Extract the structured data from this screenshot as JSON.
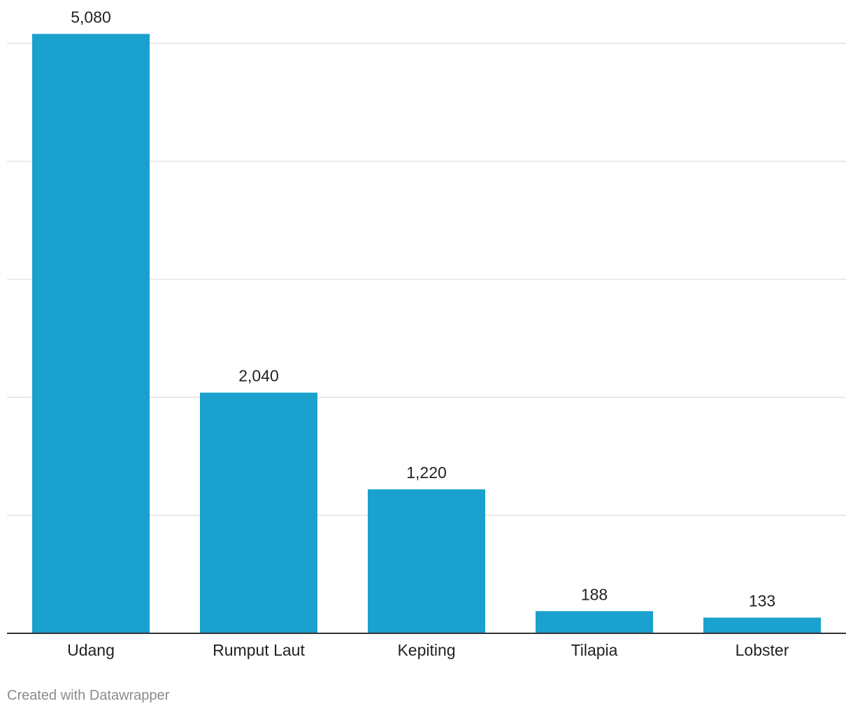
{
  "chart_data": {
    "type": "bar",
    "categories": [
      "Udang",
      "Rumput Laut",
      "Kepiting",
      "Tilapia",
      "Lobster"
    ],
    "values": [
      5080,
      2040,
      1220,
      188,
      133
    ],
    "value_labels": [
      "5,080",
      "2,040",
      "1,220",
      "188",
      "133"
    ],
    "title": "",
    "xlabel": "",
    "ylabel": "",
    "ylim": [
      0,
      5000
    ],
    "grid": true,
    "y_tick_labels_shown": false,
    "bar_color": "#1aa1cd"
  },
  "footer": {
    "credit": "Created with Datawrapper"
  }
}
